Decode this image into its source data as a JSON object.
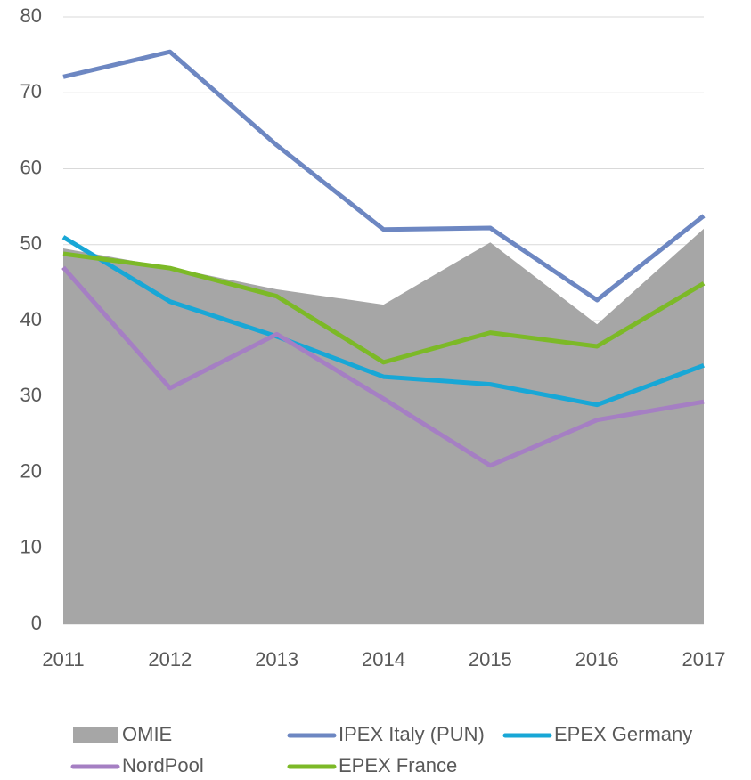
{
  "chart_data": {
    "type": "line",
    "categories": [
      "2011",
      "2012",
      "2013",
      "2014",
      "2015",
      "2016",
      "2017"
    ],
    "ylim": [
      0,
      80
    ],
    "yticks": [
      0,
      10,
      20,
      30,
      40,
      50,
      60,
      70,
      80
    ],
    "grid": true,
    "series": [
      {
        "name": "OMIE",
        "type": "area",
        "color": "#a6a6a6",
        "values": [
          49.5,
          47.0,
          44.1,
          42.1,
          50.3,
          39.5,
          52.1
        ]
      },
      {
        "name": "IPEX Italy (PUN)",
        "color": "#6d87c2",
        "values": [
          72.1,
          75.4,
          63.1,
          52.0,
          52.2,
          42.7,
          53.8
        ]
      },
      {
        "name": "EPEX Germany",
        "color": "#18a7d6",
        "values": [
          51.0,
          42.5,
          37.9,
          32.6,
          31.6,
          28.9,
          34.1
        ]
      },
      {
        "name": "NordPool",
        "color": "#a57fc3",
        "values": [
          47.0,
          31.1,
          38.2,
          29.7,
          20.9,
          26.9,
          29.3
        ]
      },
      {
        "name": "EPEX France",
        "color": "#7cb927",
        "values": [
          48.8,
          46.9,
          43.2,
          34.5,
          38.4,
          36.6,
          44.9
        ]
      }
    ]
  }
}
